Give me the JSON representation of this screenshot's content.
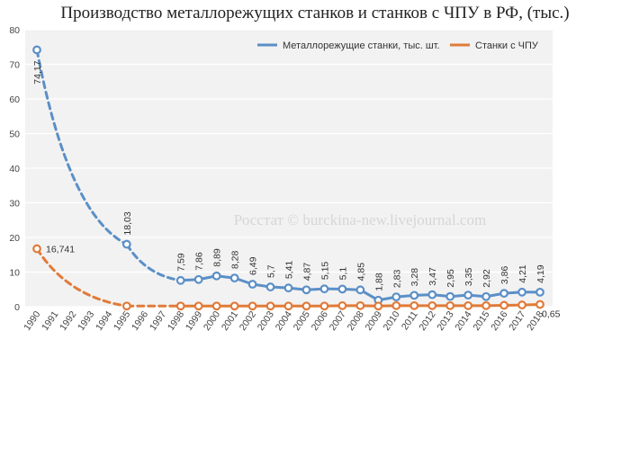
{
  "chart_data": {
    "type": "line",
    "title": "Производство металлорежущих станков и станков с ЧПУ в РФ, (тыс.)",
    "xlabel": "",
    "ylabel": "",
    "ylim": [
      0,
      80
    ],
    "yticks": [
      "0",
      "10",
      "20",
      "30",
      "40",
      "50",
      "60",
      "70",
      "80"
    ],
    "grid": true,
    "legend_position": "top-right",
    "watermark": "Росстат © burckina-new.livejournal.com",
    "categories": [
      "1990",
      "1991",
      "1992",
      "1993",
      "1994",
      "1995",
      "1996",
      "1997",
      "1998",
      "1999",
      "2000",
      "2001",
      "2002",
      "2003",
      "2004",
      "2005",
      "2006",
      "2007",
      "2008",
      "2009",
      "2010",
      "2011",
      "2012",
      "2013",
      "2014",
      "2015",
      "2016",
      "2017",
      "2018"
    ],
    "series": [
      {
        "name": "Металлорежущие станки, тыс. шт.",
        "color": "#5b8fc7",
        "values": [
          74.17,
          null,
          null,
          null,
          null,
          18.03,
          null,
          null,
          7.59,
          7.86,
          8.89,
          8.28,
          6.49,
          5.7,
          5.41,
          4.87,
          5.15,
          5.1,
          4.85,
          1.88,
          2.83,
          3.28,
          3.47,
          2.95,
          3.35,
          2.92,
          3.86,
          4.21,
          4.19
        ],
        "labels": [
          "74,17",
          null,
          null,
          null,
          null,
          "18,03",
          null,
          null,
          "7,59",
          "7,86",
          "8,89",
          "8,28",
          "6,49",
          "5,7",
          "5,41",
          "4,87",
          "5,15",
          "5,1",
          "4,85",
          "1,88",
          "2,83",
          "3,28",
          "3,47",
          "2,95",
          "3,35",
          "2,92",
          "3,86",
          "4,21",
          "4,19"
        ]
      },
      {
        "name": "Станки с ЧПУ",
        "color": "#e07b39",
        "values": [
          16.741,
          null,
          null,
          null,
          null,
          0.2,
          null,
          null,
          0.2,
          0.2,
          0.2,
          0.2,
          0.2,
          0.2,
          0.2,
          0.2,
          0.2,
          0.3,
          0.3,
          0.2,
          0.3,
          0.3,
          0.3,
          0.3,
          0.3,
          0.3,
          0.4,
          0.5,
          0.65
        ],
        "labels": [
          "16,741",
          null,
          null,
          null,
          null,
          null,
          null,
          null,
          null,
          null,
          null,
          null,
          null,
          null,
          null,
          null,
          null,
          null,
          null,
          null,
          null,
          null,
          null,
          null,
          null,
          null,
          null,
          null,
          "0,65"
        ]
      }
    ]
  }
}
